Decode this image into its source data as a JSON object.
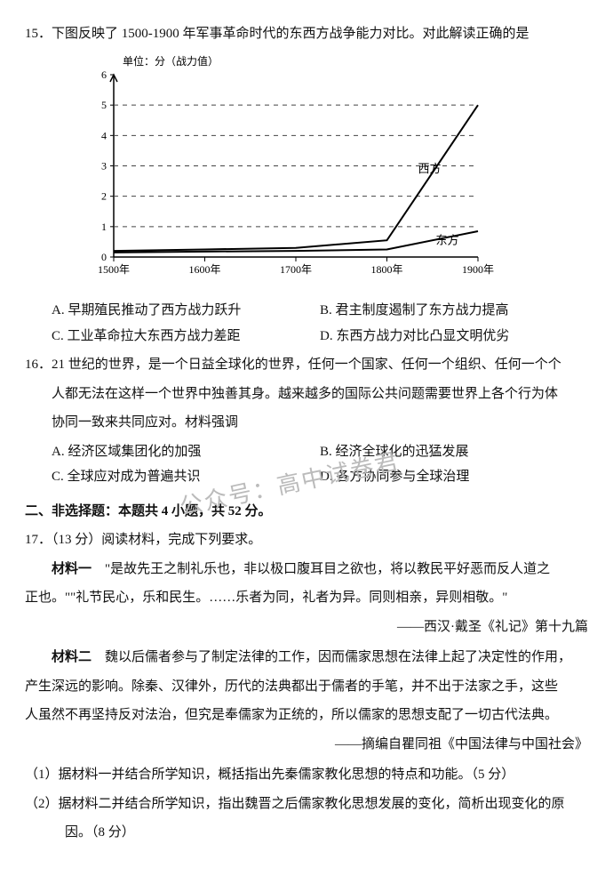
{
  "q15": {
    "number": "15．",
    "stem": "下图反映了 1500-1900 年军事革命时代的东西方战争能力对比。对此解读正确的是",
    "chart": {
      "type": "line",
      "unit_label": "单位：分（战力值）",
      "xticks": [
        "1500年",
        "1600年",
        "1700年",
        "1800年",
        "1900年"
      ],
      "ylim": [
        0,
        6
      ],
      "yticks": [
        0,
        1,
        2,
        3,
        4,
        5,
        6
      ],
      "grid_color": "#444",
      "axis_color": "#000",
      "background": "#ffffff",
      "line_color": "#000000",
      "line_width": 2,
      "series": {
        "west": {
          "label": "西方",
          "values": [
            0.2,
            0.25,
            0.3,
            0.55,
            5.0
          ]
        },
        "east": {
          "label": "东方",
          "values": [
            0.15,
            0.18,
            0.2,
            0.25,
            0.85
          ]
        }
      }
    },
    "options": {
      "A": "A. 早期殖民推动了西方战力跃升",
      "B": "B. 君主制度遏制了东方战力提高",
      "C": "C. 工业革命拉大东西方战力差距",
      "D": "D. 东西方战力对比凸显文明优劣"
    }
  },
  "q16": {
    "number": "16．",
    "stem1": "21 世纪的世界，是一个日益全球化的世界，任何一个国家、任何一个组织、任何一个个",
    "stem2": "人都无法在这样一个世界中独善其身。越来越多的国际公共问题需要世界上各个行为体",
    "stem3": "协同一致来共同应对。材料强调",
    "options": {
      "A": "A. 经济区域集团化的加强",
      "B": "B. 经济全球化的迅猛发展",
      "C": "C. 全球应对成为普遍共识",
      "D": "D. 各方协同参与全球治理"
    }
  },
  "section2": {
    "title": "二、非选择题：本题共 4 小题，共 52 分。"
  },
  "q17": {
    "line1": "17．（13 分）阅读材料，完成下列要求。",
    "mat1_label": "材料一",
    "mat1_text": "　\"是故先王之制礼乐也，非以极口腹耳目之欲也，将以教民平好恶而反人道之",
    "mat1_text2": "正也。\"\"礼节民心，乐和民生。……乐者为同，礼者为异。同则相亲，异则相敬。\"",
    "mat1_src": "——西汉·戴圣《礼记》第十九篇",
    "mat2_label": "材料二",
    "mat2_text": "　魏以后儒者参与了制定法律的工作，因而儒家思想在法律上起了决定性的作用，",
    "mat2_text2": "产生深远的影响。除秦、汉律外，历代的法典都出于儒者的手笔，并不出于法家之手，这些",
    "mat2_text3": "人虽然不再坚持反对法治，但究是奉儒家为正统的，所以儒家的思想支配了一切古代法典。",
    "mat2_src": "——摘编自瞿同祖《中国法律与中国社会》",
    "sub1": "（1）据材料一并结合所学知识，概括指出先秦儒家教化思想的特点和功能。（5 分）",
    "sub2a": "（2）据材料二并结合所学知识，指出魏晋之后儒家教化思想发展的变化，简析出现变化的原",
    "sub2b": "　　　因。（8 分）"
  },
  "watermark": "公众号：高中试卷君"
}
